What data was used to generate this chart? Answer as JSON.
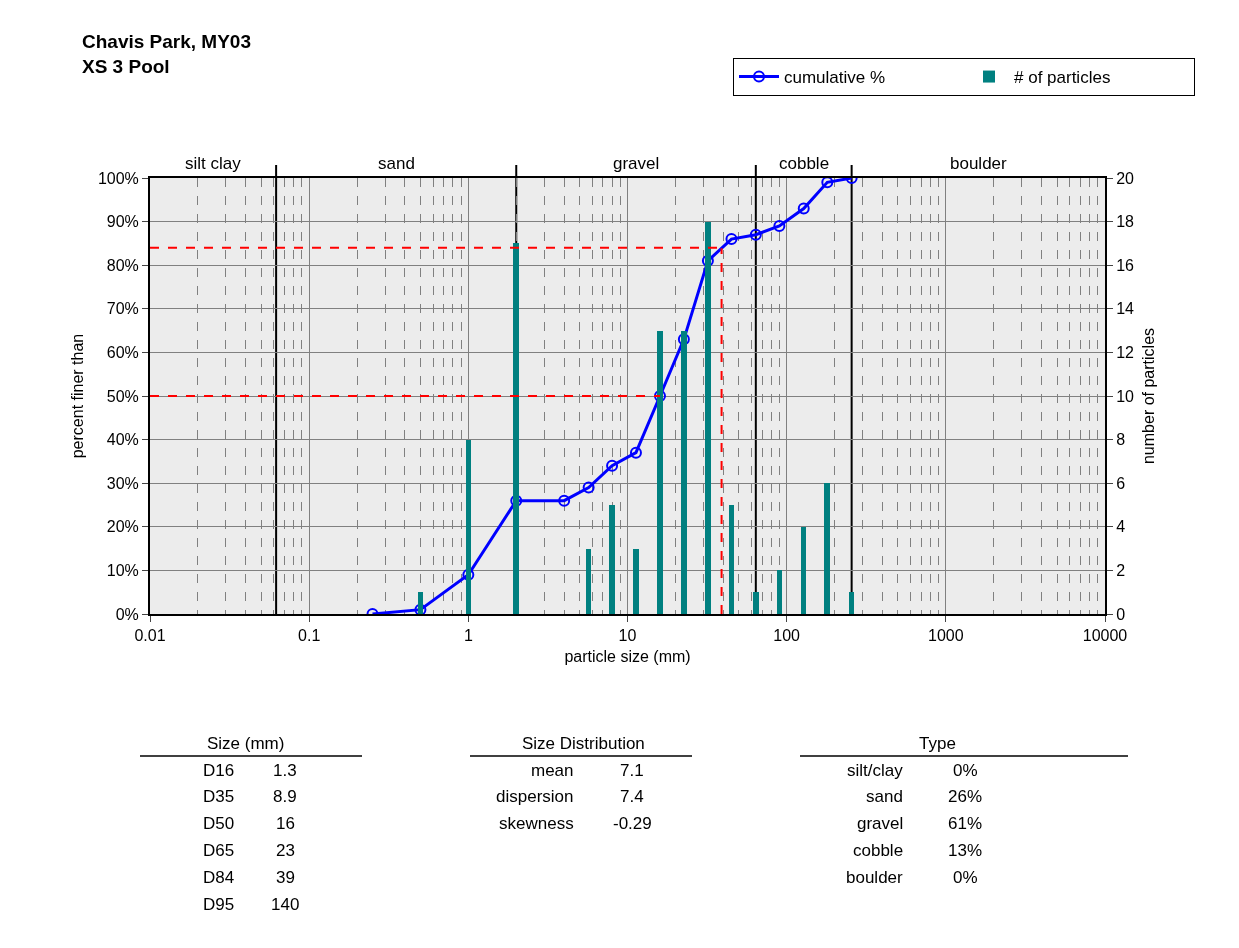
{
  "chart_data": {
    "type": "line",
    "title": "Chavis Park, MY03",
    "subtitle": "XS 3 Pool",
    "xlabel": "particle size (mm)",
    "ylabel": "percent finer than",
    "y2label": "number of particles",
    "log": "x",
    "x": [
      0.25,
      0.5,
      1,
      2,
      4,
      5.7,
      8,
      11.3,
      16,
      22.6,
      32,
      45,
      64,
      90,
      128,
      180,
      256
    ],
    "series": [
      {
        "name": "cumulative %",
        "color": "#0000ff",
        "marker": "circle",
        "values": [
          0,
          1,
          9,
          26,
          26,
          29,
          34,
          37,
          50,
          63,
          81,
          86,
          87,
          89,
          93,
          99,
          100
        ]
      },
      {
        "name": "# of particles",
        "type": "bar",
        "axis": "y2",
        "color": "#008080",
        "x": [
          0.5,
          1,
          2,
          5.7,
          8,
          11.3,
          16,
          22.6,
          32,
          45,
          64,
          90,
          128,
          180,
          256
        ],
        "values": [
          1,
          8,
          17,
          3,
          5,
          3,
          13,
          13,
          18,
          5,
          1,
          2,
          4,
          6,
          1
        ]
      }
    ],
    "xlim": [
      0.01,
      10000
    ],
    "xticks": [
      0.01,
      0.1,
      1,
      10,
      100,
      1000,
      10000
    ],
    "ylim": [
      0,
      100
    ],
    "yticks": [
      {
        "value": 0,
        "label": "0%"
      },
      {
        "value": 10,
        "label": "10%"
      },
      {
        "value": 20,
        "label": "20%"
      },
      {
        "value": 30,
        "label": "30%"
      },
      {
        "value": 40,
        "label": "40%"
      },
      {
        "value": 50,
        "label": "50%"
      },
      {
        "value": 60,
        "label": "60%"
      },
      {
        "value": 70,
        "label": "70%"
      },
      {
        "value": 80,
        "label": "80%"
      },
      {
        "value": 90,
        "label": "90%"
      },
      {
        "value": 100,
        "label": "100%"
      }
    ],
    "y2lim": [
      0,
      20
    ],
    "y2ticks": [
      0,
      2,
      4,
      6,
      8,
      10,
      12,
      14,
      16,
      18,
      20
    ],
    "grid": true,
    "legend": "top right",
    "ref_lines": [
      {
        "axis": "y",
        "value": 84,
        "color": "#ff0000",
        "line_style": "dashed"
      },
      {
        "axis": "y",
        "value": 50,
        "color": "#ff0000",
        "line_style": "dashed"
      },
      {
        "axis": "x",
        "value": 39,
        "color": "#ff0000",
        "line_style": "dashed"
      }
    ],
    "bands": [
      {
        "axis": "x",
        "from": 0.01,
        "to": 0.062,
        "label": "silt clay",
        "color": "#ececec"
      },
      {
        "axis": "x",
        "from": 0.062,
        "to": 2,
        "label": "sand",
        "color": "#ececec"
      },
      {
        "axis": "x",
        "from": 2,
        "to": 64,
        "label": "gravel",
        "color": "#ececec"
      },
      {
        "axis": "x",
        "from": 64,
        "to": 256,
        "label": "cobble",
        "color": "#ececec"
      },
      {
        "axis": "x",
        "from": 256,
        "to": 10000,
        "label": "boulder",
        "color": "#ececec"
      }
    ],
    "annotations": [
      "Size (mm)",
      "D16",
      "1.3",
      "D35",
      "8.9",
      "D50",
      "16",
      "D65",
      "23",
      "D84",
      "39",
      "D95",
      "140",
      "Size Distribution",
      "mean",
      "7.1",
      "dispersion",
      "7.4",
      "skewness",
      "-0.29",
      "Type",
      "silt/clay",
      "0%",
      "sand",
      "26%",
      "gravel",
      "61%",
      "cobble",
      "13%",
      "boulder",
      "0%"
    ]
  }
}
